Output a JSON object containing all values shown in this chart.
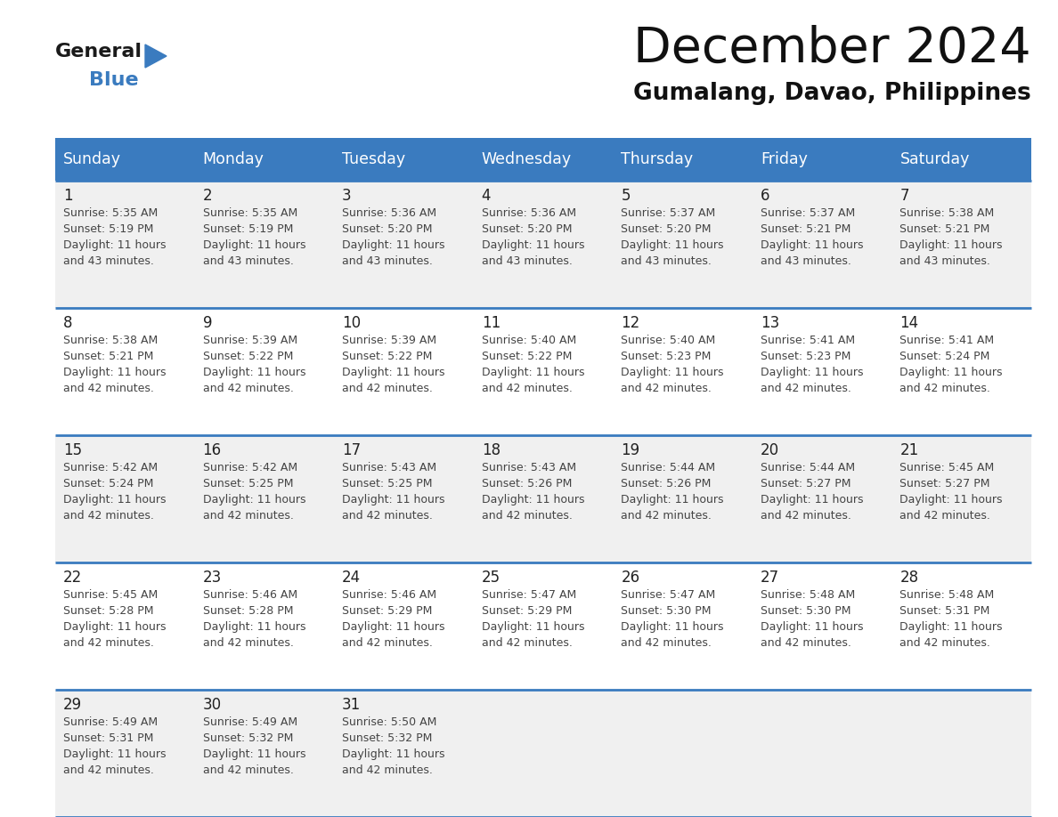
{
  "title": "December 2024",
  "subtitle": "Gumalang, Davao, Philippines",
  "header_color": "#3a7bbf",
  "header_text_color": "#ffffff",
  "row_bg_even": "#f0f0f0",
  "row_bg_odd": "#ffffff",
  "border_color": "#3a7bbf",
  "text_color": "#444444",
  "day_num_color": "#222222",
  "days_of_week": [
    "Sunday",
    "Monday",
    "Tuesday",
    "Wednesday",
    "Thursday",
    "Friday",
    "Saturday"
  ],
  "weeks": [
    [
      {
        "day": 1,
        "sunrise": "5:35 AM",
        "sunset": "5:19 PM",
        "daylight": "11 hours\nand 43 minutes."
      },
      {
        "day": 2,
        "sunrise": "5:35 AM",
        "sunset": "5:19 PM",
        "daylight": "11 hours\nand 43 minutes."
      },
      {
        "day": 3,
        "sunrise": "5:36 AM",
        "sunset": "5:20 PM",
        "daylight": "11 hours\nand 43 minutes."
      },
      {
        "day": 4,
        "sunrise": "5:36 AM",
        "sunset": "5:20 PM",
        "daylight": "11 hours\nand 43 minutes."
      },
      {
        "day": 5,
        "sunrise": "5:37 AM",
        "sunset": "5:20 PM",
        "daylight": "11 hours\nand 43 minutes."
      },
      {
        "day": 6,
        "sunrise": "5:37 AM",
        "sunset": "5:21 PM",
        "daylight": "11 hours\nand 43 minutes."
      },
      {
        "day": 7,
        "sunrise": "5:38 AM",
        "sunset": "5:21 PM",
        "daylight": "11 hours\nand 43 minutes."
      }
    ],
    [
      {
        "day": 8,
        "sunrise": "5:38 AM",
        "sunset": "5:21 PM",
        "daylight": "11 hours\nand 42 minutes."
      },
      {
        "day": 9,
        "sunrise": "5:39 AM",
        "sunset": "5:22 PM",
        "daylight": "11 hours\nand 42 minutes."
      },
      {
        "day": 10,
        "sunrise": "5:39 AM",
        "sunset": "5:22 PM",
        "daylight": "11 hours\nand 42 minutes."
      },
      {
        "day": 11,
        "sunrise": "5:40 AM",
        "sunset": "5:22 PM",
        "daylight": "11 hours\nand 42 minutes."
      },
      {
        "day": 12,
        "sunrise": "5:40 AM",
        "sunset": "5:23 PM",
        "daylight": "11 hours\nand 42 minutes."
      },
      {
        "day": 13,
        "sunrise": "5:41 AM",
        "sunset": "5:23 PM",
        "daylight": "11 hours\nand 42 minutes."
      },
      {
        "day": 14,
        "sunrise": "5:41 AM",
        "sunset": "5:24 PM",
        "daylight": "11 hours\nand 42 minutes."
      }
    ],
    [
      {
        "day": 15,
        "sunrise": "5:42 AM",
        "sunset": "5:24 PM",
        "daylight": "11 hours\nand 42 minutes."
      },
      {
        "day": 16,
        "sunrise": "5:42 AM",
        "sunset": "5:25 PM",
        "daylight": "11 hours\nand 42 minutes."
      },
      {
        "day": 17,
        "sunrise": "5:43 AM",
        "sunset": "5:25 PM",
        "daylight": "11 hours\nand 42 minutes."
      },
      {
        "day": 18,
        "sunrise": "5:43 AM",
        "sunset": "5:26 PM",
        "daylight": "11 hours\nand 42 minutes."
      },
      {
        "day": 19,
        "sunrise": "5:44 AM",
        "sunset": "5:26 PM",
        "daylight": "11 hours\nand 42 minutes."
      },
      {
        "day": 20,
        "sunrise": "5:44 AM",
        "sunset": "5:27 PM",
        "daylight": "11 hours\nand 42 minutes."
      },
      {
        "day": 21,
        "sunrise": "5:45 AM",
        "sunset": "5:27 PM",
        "daylight": "11 hours\nand 42 minutes."
      }
    ],
    [
      {
        "day": 22,
        "sunrise": "5:45 AM",
        "sunset": "5:28 PM",
        "daylight": "11 hours\nand 42 minutes."
      },
      {
        "day": 23,
        "sunrise": "5:46 AM",
        "sunset": "5:28 PM",
        "daylight": "11 hours\nand 42 minutes."
      },
      {
        "day": 24,
        "sunrise": "5:46 AM",
        "sunset": "5:29 PM",
        "daylight": "11 hours\nand 42 minutes."
      },
      {
        "day": 25,
        "sunrise": "5:47 AM",
        "sunset": "5:29 PM",
        "daylight": "11 hours\nand 42 minutes."
      },
      {
        "day": 26,
        "sunrise": "5:47 AM",
        "sunset": "5:30 PM",
        "daylight": "11 hours\nand 42 minutes."
      },
      {
        "day": 27,
        "sunrise": "5:48 AM",
        "sunset": "5:30 PM",
        "daylight": "11 hours\nand 42 minutes."
      },
      {
        "day": 28,
        "sunrise": "5:48 AM",
        "sunset": "5:31 PM",
        "daylight": "11 hours\nand 42 minutes."
      }
    ],
    [
      {
        "day": 29,
        "sunrise": "5:49 AM",
        "sunset": "5:31 PM",
        "daylight": "11 hours\nand 42 minutes."
      },
      {
        "day": 30,
        "sunrise": "5:49 AM",
        "sunset": "5:32 PM",
        "daylight": "11 hours\nand 42 minutes."
      },
      {
        "day": 31,
        "sunrise": "5:50 AM",
        "sunset": "5:32 PM",
        "daylight": "11 hours\nand 42 minutes."
      },
      null,
      null,
      null,
      null
    ]
  ],
  "logo_general_color": "#1a1a1a",
  "logo_blue_color": "#3a7bbf",
  "logo_triangle_color": "#3a7bbf",
  "fig_width": 11.88,
  "fig_height": 9.18,
  "dpi": 100
}
